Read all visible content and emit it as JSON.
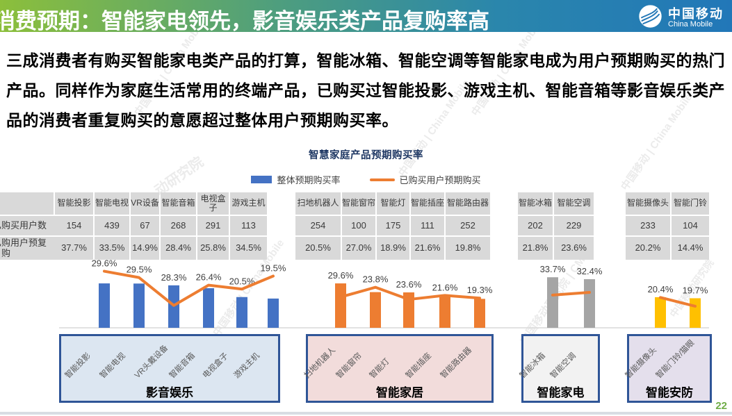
{
  "header": {
    "title": "消费预期：智能家电领先，影音娱乐类产品复购率高",
    "brand_cn": "中国移动",
    "brand_en": "China Mobile"
  },
  "intro": "三成消费者有购买智能家电类产品的打算，智能冰箱、智能空调等智能家电成为用户预期购买的热门产品。同样作为家庭生活常用的终端产品，已购买过智能投影、游戏主机、智能音箱等影音娱乐类产品的消费者重复购买的意愿超过整体用户预期购买率。",
  "chart_data": {
    "type": "bar+line",
    "title": "智慧家庭产品预期购买率",
    "ylim": [
      0,
      40
    ],
    "unit": "%",
    "legend": [
      {
        "label": "整体预期购买率",
        "type": "bar",
        "color": "#4472C4"
      },
      {
        "label": "已购买用户预期购买",
        "type": "line",
        "color": "#ED7D31"
      }
    ],
    "row_labels": [
      "已购买用户数",
      "已购用户预复购"
    ],
    "groups": [
      {
        "name": "影音娱乐",
        "bar_color": "#4472C4",
        "box_color": "#DCE6F1",
        "items": [
          {
            "label": "智能投影",
            "axis_label": "智能投影",
            "users": 154,
            "repurchase_pct": 37.7,
            "overall_pct": 29.6
          },
          {
            "label": "智能电视",
            "axis_label": "智能电视",
            "users": 439,
            "repurchase_pct": 33.5,
            "overall_pct": 29.5
          },
          {
            "label": "VR设备",
            "axis_label": "VR头戴设备",
            "users": 67,
            "repurchase_pct": 14.9,
            "overall_pct": 28.3
          },
          {
            "label": "智能音箱",
            "axis_label": "智能音箱",
            "users": 268,
            "repurchase_pct": 28.4,
            "overall_pct": 26.4
          },
          {
            "label": "电视盒子",
            "axis_label": "电视盒子",
            "users": 291,
            "repurchase_pct": 25.8,
            "overall_pct": 20.5
          },
          {
            "label": "游戏主机",
            "axis_label": "游戏主机",
            "users": 113,
            "repurchase_pct": 34.5,
            "overall_pct": 19.5
          }
        ]
      },
      {
        "name": "智能家居",
        "bar_color": "#ED7D31",
        "box_color": "#F2DCDB",
        "items": [
          {
            "label": "扫地机器人",
            "axis_label": "扫地机器人",
            "users": 254,
            "repurchase_pct": 20.5,
            "overall_pct": 29.6
          },
          {
            "label": "智能窗帘",
            "axis_label": "智能窗帘",
            "users": 100,
            "repurchase_pct": 27.0,
            "overall_pct": 23.8
          },
          {
            "label": "智能灯",
            "axis_label": "智能灯",
            "users": 175,
            "repurchase_pct": 18.9,
            "overall_pct": 23.6
          },
          {
            "label": "智能插座",
            "axis_label": "智能插座",
            "users": 111,
            "repurchase_pct": 21.6,
            "overall_pct": 21.6
          },
          {
            "label": "智能路由器",
            "axis_label": "智能路由器",
            "users": 252,
            "repurchase_pct": 19.8,
            "overall_pct": 19.3
          }
        ]
      },
      {
        "name": "智能家电",
        "bar_color": "#A5A5A5",
        "box_color": "#F2F2F2",
        "items": [
          {
            "label": "智能冰箱",
            "axis_label": "智能冰箱",
            "users": 202,
            "repurchase_pct": 21.8,
            "overall_pct": 33.7
          },
          {
            "label": "智能空调",
            "axis_label": "智能空调",
            "users": 229,
            "repurchase_pct": 23.6,
            "overall_pct": 32.4
          }
        ]
      },
      {
        "name": "智能安防",
        "bar_color": "#FFC000",
        "box_color": "#E4DFEC",
        "items": [
          {
            "label": "智能摄像头",
            "axis_label": "智能摄像头",
            "users": 233,
            "repurchase_pct": 20.2,
            "overall_pct": 20.4
          },
          {
            "label": "智能门铃",
            "axis_label": "智能门铃/猫眼",
            "users": 104,
            "repurchase_pct": 14.4,
            "overall_pct": 19.7
          }
        ]
      }
    ]
  },
  "watermarks": [
    "中国移动 | China Mobile",
    "中国移动 | China Mobile",
    "中国移动 | China Mobile",
    "中国移动 | China Mobile",
    "中国移动研究院 | CMRI",
    "动研究院",
    "中国移动 | China Mobile",
    "中国移动研究院"
  ],
  "page_number": "22",
  "colors": {
    "header_gradient_left": "#8CBF3B",
    "header_gradient_right": "#2277B8",
    "bar_blue": "#4472C4",
    "line_orange": "#ED7D31",
    "bar_gray": "#A5A5A5",
    "bar_yellow": "#FFC000",
    "table_cell_bg": "#D9D9D9",
    "chart_title": "#1F3864",
    "box_border": "#2F5597",
    "page_number_green": "#70AD47"
  }
}
